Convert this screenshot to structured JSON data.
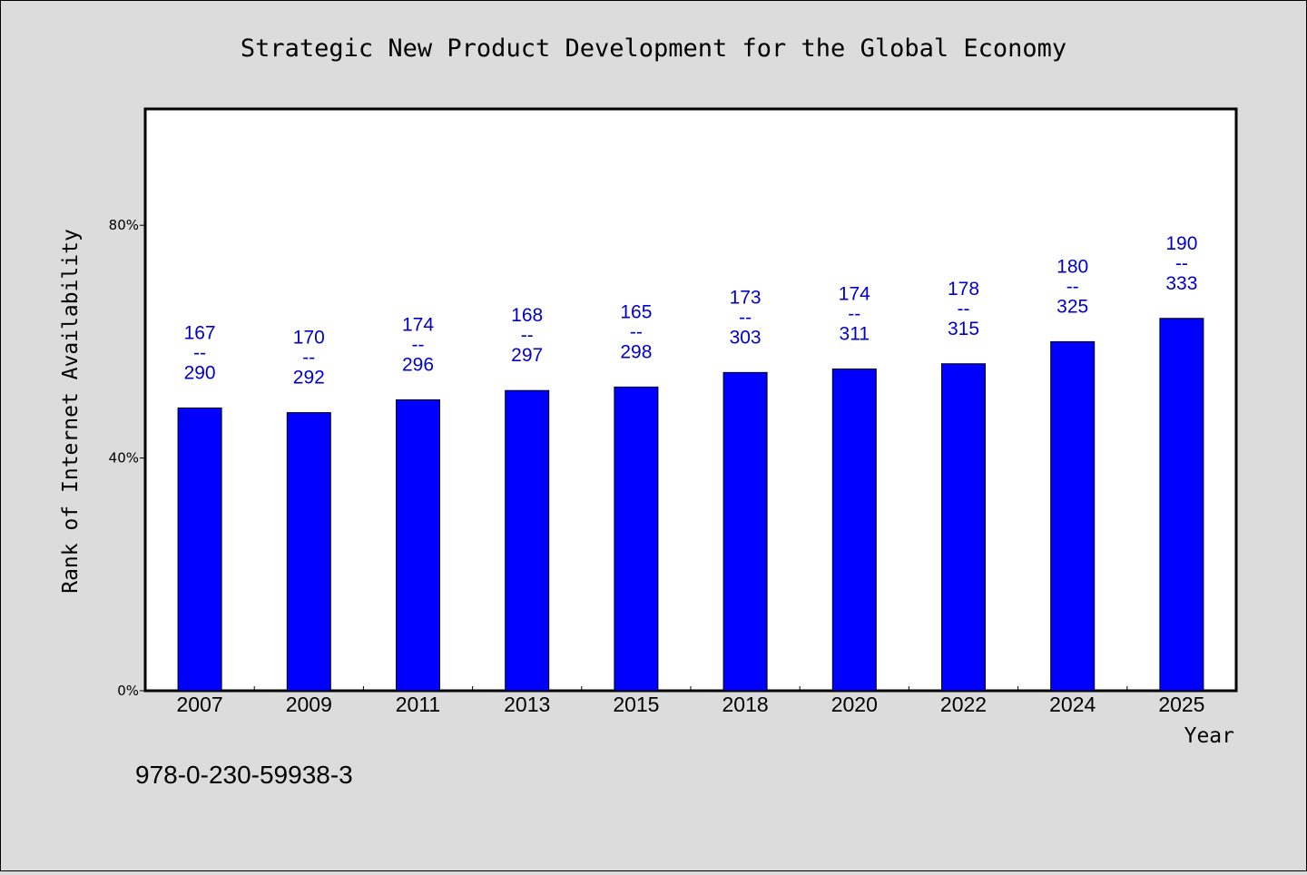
{
  "chart_data": {
    "type": "bar",
    "title": "Strategic New Product Development for the Global Economy",
    "xlabel": "Year",
    "ylabel": "Rank of Internet Availability",
    "categories": [
      "2007",
      "2009",
      "2011",
      "2013",
      "2015",
      "2018",
      "2020",
      "2022",
      "2024",
      "2025"
    ],
    "series": [
      {
        "values": [
          48.6,
          47.8,
          50.0,
          51.6,
          52.2,
          54.7,
          55.3,
          56.2,
          60.0,
          64.0
        ],
        "labels": [
          [
            "167",
            "--",
            "290"
          ],
          [
            "170",
            "--",
            "292"
          ],
          [
            "174",
            "--",
            "296"
          ],
          [
            "168",
            "--",
            "297"
          ],
          [
            "165",
            "--",
            "298"
          ],
          [
            "173",
            "--",
            "303"
          ],
          [
            "174",
            "--",
            "311"
          ],
          [
            "178",
            "--",
            "315"
          ],
          [
            "180",
            "--",
            "325"
          ],
          [
            "190",
            "--",
            "333"
          ]
        ]
      }
    ],
    "ylim": [
      0,
      100
    ],
    "yticks": [
      0,
      40,
      80
    ],
    "ytick_labels": [
      "0%",
      "40%",
      "80%"
    ],
    "grid": false,
    "bar_color": "#0000ff",
    "label_color": "#0000cc",
    "plot_background": "#ffffff",
    "page_background": "#dcdcdc"
  },
  "footer": {
    "isbn": "978-0-230-59938-3"
  }
}
